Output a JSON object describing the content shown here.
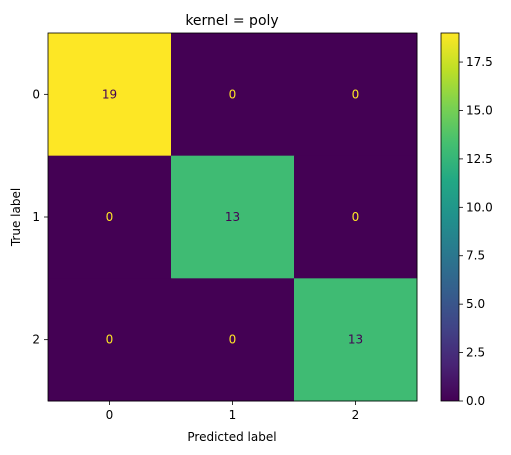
{
  "chart_data": {
    "type": "heatmap",
    "title": "kernel = poly",
    "xlabel": "Predicted label",
    "ylabel": "True label",
    "x_categories": [
      "0",
      "1",
      "2"
    ],
    "y_categories": [
      "0",
      "1",
      "2"
    ],
    "matrix": [
      [
        19,
        0,
        0
      ],
      [
        0,
        13,
        0
      ],
      [
        0,
        0,
        13
      ]
    ],
    "colorbar": {
      "min": 0,
      "max": 19,
      "colormap": "viridis",
      "ticks": [
        0.0,
        2.5,
        5.0,
        7.5,
        10.0,
        12.5,
        15.0,
        17.5
      ],
      "tick_labels": [
        "0.0",
        "2.5",
        "5.0",
        "7.5",
        "10.0",
        "12.5",
        "15.0",
        "17.5"
      ]
    },
    "text_color_on_dark": "#fde725",
    "text_color_on_light": "#440154",
    "grid": false
  }
}
